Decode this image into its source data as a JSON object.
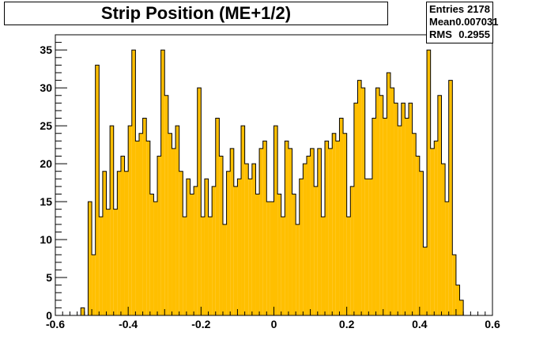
{
  "chart_data": {
    "type": "bar",
    "title": "Strip Position (ME+1/2)",
    "xlabel": "",
    "ylabel": "",
    "xlim": [
      -0.6,
      0.6
    ],
    "ylim": [
      0,
      37
    ],
    "x_ticks": [
      "-0.6",
      "-0.4",
      "-0.2",
      "0",
      "0.2",
      "0.4",
      "0.6"
    ],
    "y_ticks": [
      "0",
      "5",
      "10",
      "15",
      "20",
      "25",
      "30",
      "35"
    ],
    "bin_width": 0.01,
    "bin_start": -0.53,
    "values": [
      1,
      0,
      15,
      8,
      33,
      13,
      19,
      14,
      25,
      14,
      19,
      21,
      19,
      25,
      35,
      23,
      24,
      26,
      23,
      16,
      15,
      21,
      35,
      29,
      24,
      22,
      25,
      19,
      13,
      18,
      16,
      17,
      30,
      13,
      18,
      13,
      17,
      26,
      21,
      12,
      19,
      22,
      17,
      18,
      25,
      20,
      18,
      20,
      16,
      22,
      23,
      15,
      15,
      25,
      16,
      13,
      23,
      22,
      16,
      12,
      18,
      20,
      21,
      22,
      17,
      22,
      13,
      23,
      22,
      24,
      23,
      26,
      24,
      13,
      17,
      28,
      31,
      30,
      18,
      18,
      26,
      30,
      29,
      26,
      32,
      30,
      28,
      25,
      28,
      26,
      28,
      24,
      21,
      19,
      9,
      35,
      22,
      23,
      29,
      20,
      15,
      31,
      8,
      4,
      2
    ],
    "stats": [
      {
        "label": "Entries",
        "value": "2178"
      },
      {
        "label": "Mean",
        "value": "0.007031"
      },
      {
        "label": "RMS",
        "value": "0.2955"
      }
    ],
    "fill_color": "#ffbf00",
    "line_color": "#000000",
    "grid": false
  }
}
